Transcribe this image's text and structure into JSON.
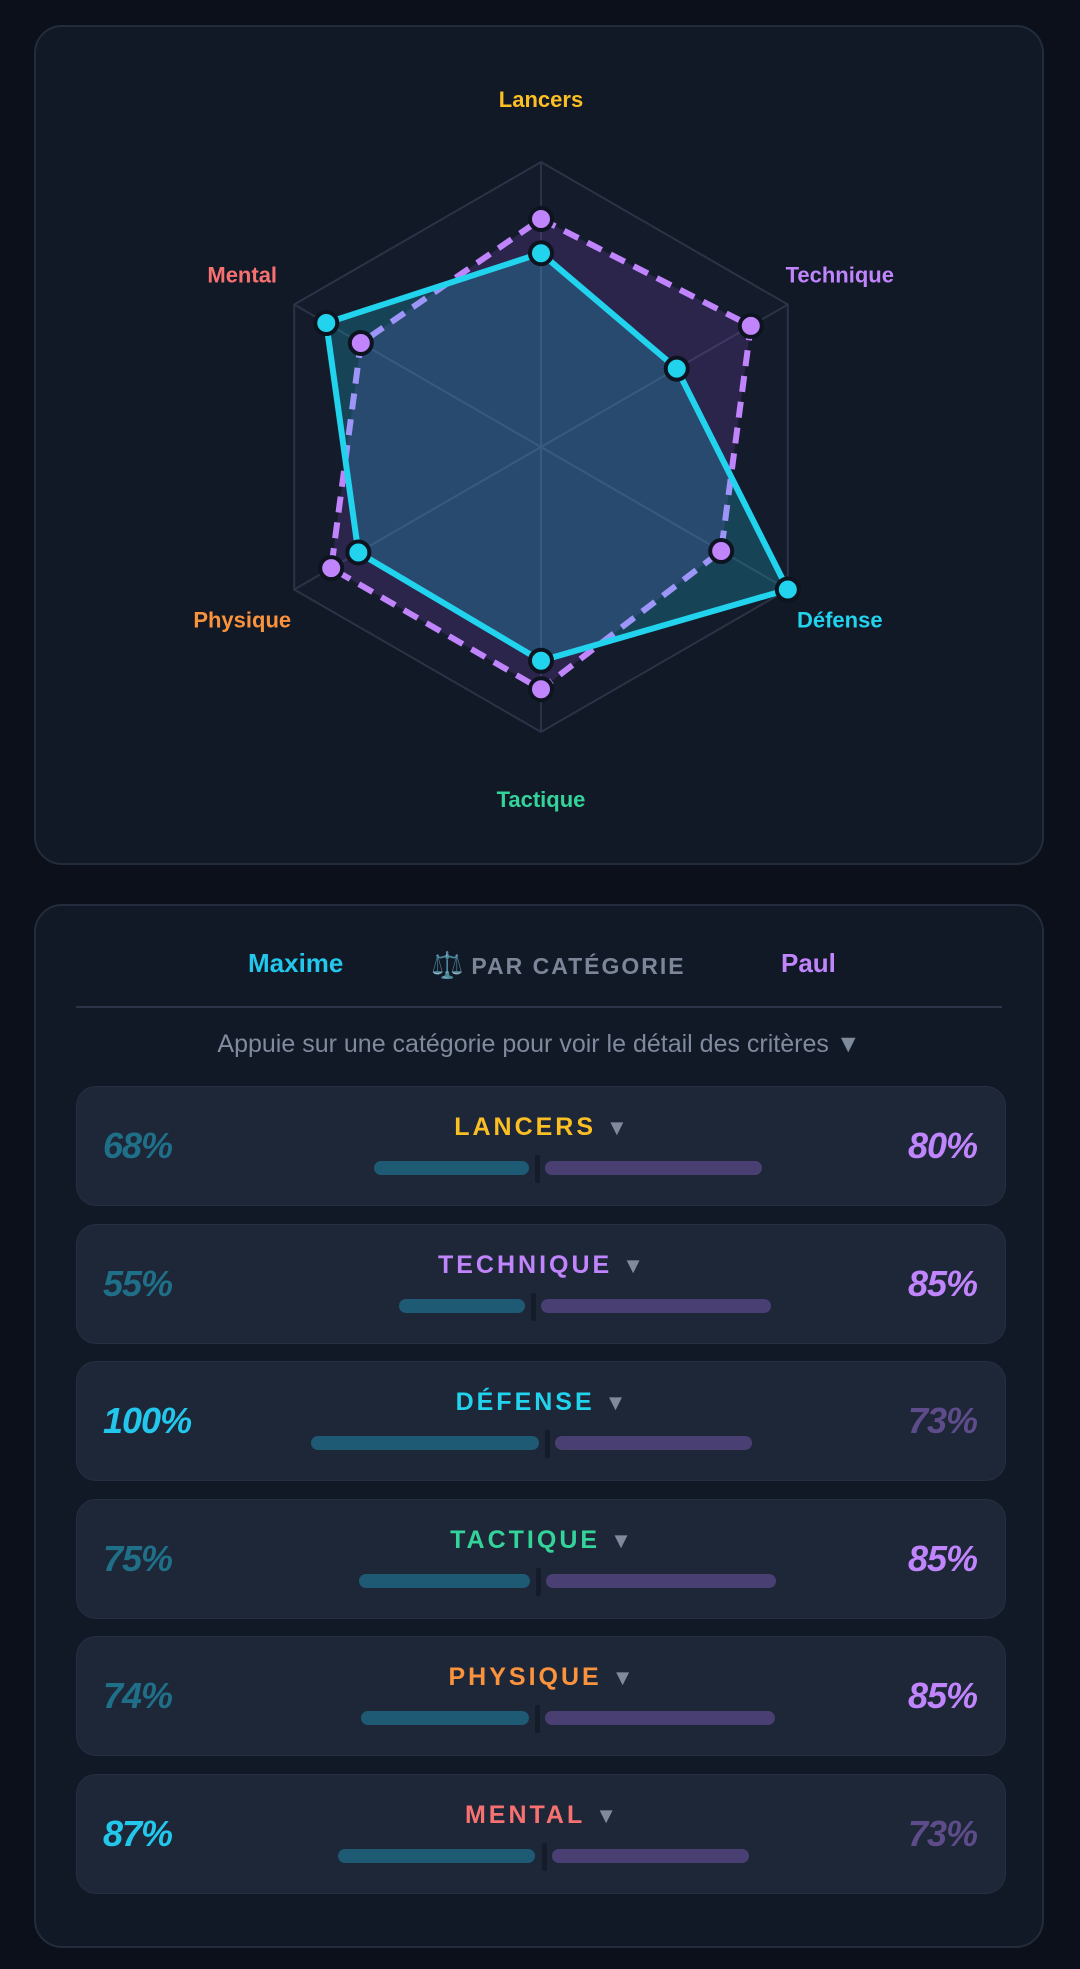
{
  "chart_data": {
    "type": "radar",
    "categories": [
      {
        "label": "Lancers",
        "color": "#fbbf24"
      },
      {
        "label": "Technique",
        "color": "#c084fc"
      },
      {
        "label": "Défense",
        "color": "#22d3ee"
      },
      {
        "label": "Tactique",
        "color": "#34d399"
      },
      {
        "label": "Physique",
        "color": "#fb923c"
      },
      {
        "label": "Mental",
        "color": "#f87171"
      }
    ],
    "series": [
      {
        "name": "Maxime",
        "values": [
          68,
          55,
          100,
          75,
          74,
          87
        ],
        "color": "#22d3ee",
        "style": "solid"
      },
      {
        "name": "Paul",
        "values": [
          80,
          85,
          73,
          85,
          85,
          73
        ],
        "color": "#c084fc",
        "style": "dashed"
      }
    ],
    "range": [
      0,
      100
    ],
    "grid_rings": 4
  },
  "comparison": {
    "left_name": "Maxime",
    "right_name": "Paul",
    "header_icon": "⚖️",
    "header_label": "PAR CATÉGORIE",
    "hint": "Appuie sur une catégorie pour voir le détail des critères ▼",
    "arrow": "▼",
    "rows": [
      {
        "label": "LANCERS",
        "color": "#fbbf24",
        "left_pct": "68%",
        "right_pct": "80%",
        "left": 68,
        "right": 80
      },
      {
        "label": "TECHNIQUE",
        "color": "#c084fc",
        "left_pct": "55%",
        "right_pct": "85%",
        "left": 55,
        "right": 85
      },
      {
        "label": "DÉFENSE",
        "color": "#22d3ee",
        "left_pct": "100%",
        "right_pct": "73%",
        "left": 100,
        "right": 73
      },
      {
        "label": "TACTIQUE",
        "color": "#34d399",
        "left_pct": "75%",
        "right_pct": "85%",
        "left": 75,
        "right": 85
      },
      {
        "label": "PHYSIQUE",
        "color": "#fb923c",
        "left_pct": "74%",
        "right_pct": "85%",
        "left": 74,
        "right": 85
      },
      {
        "label": "MENTAL",
        "color": "#f87171",
        "left_pct": "87%",
        "right_pct": "73%",
        "left": 87,
        "right": 73
      }
    ]
  }
}
